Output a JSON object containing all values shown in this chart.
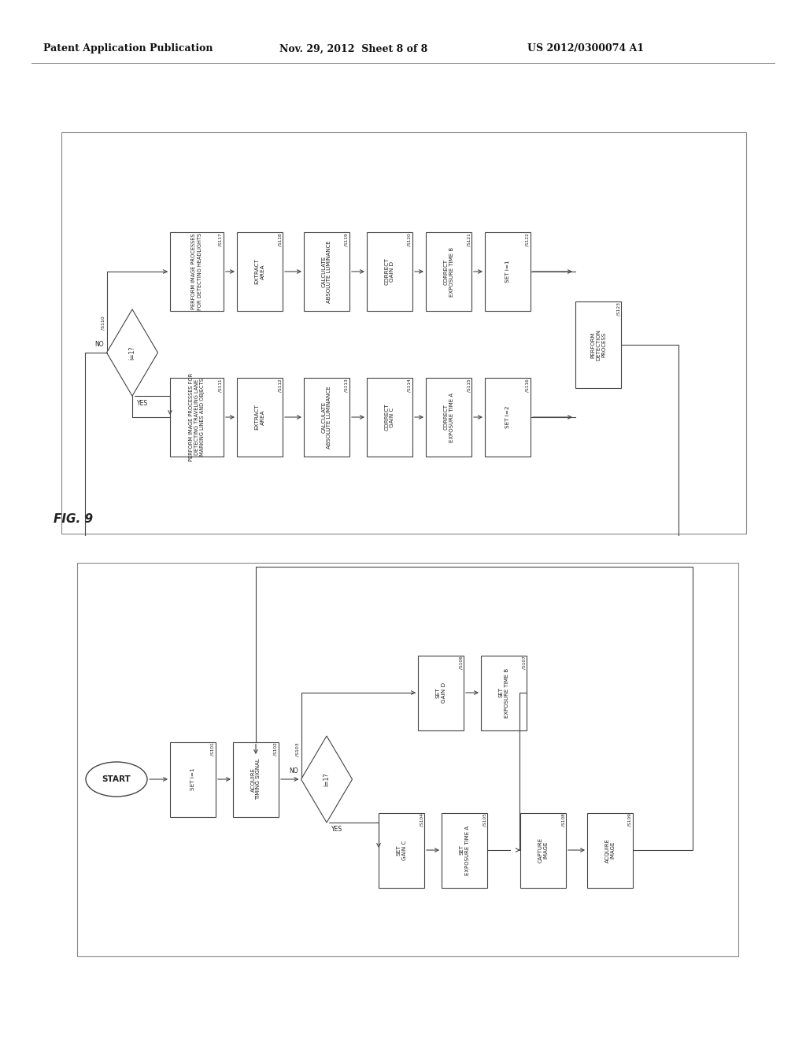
{
  "header_left": "Patent Application Publication",
  "header_mid": "Nov. 29, 2012  Sheet 8 of 8",
  "header_right": "US 2012/0300074 A1",
  "fig_label": "FIG. 9",
  "background_color": "#ffffff",
  "box_color": "#ffffff",
  "box_edge": "#444444",
  "text_color": "#222222",
  "arrow_color": "#444444",
  "header_line_color": "#888888"
}
